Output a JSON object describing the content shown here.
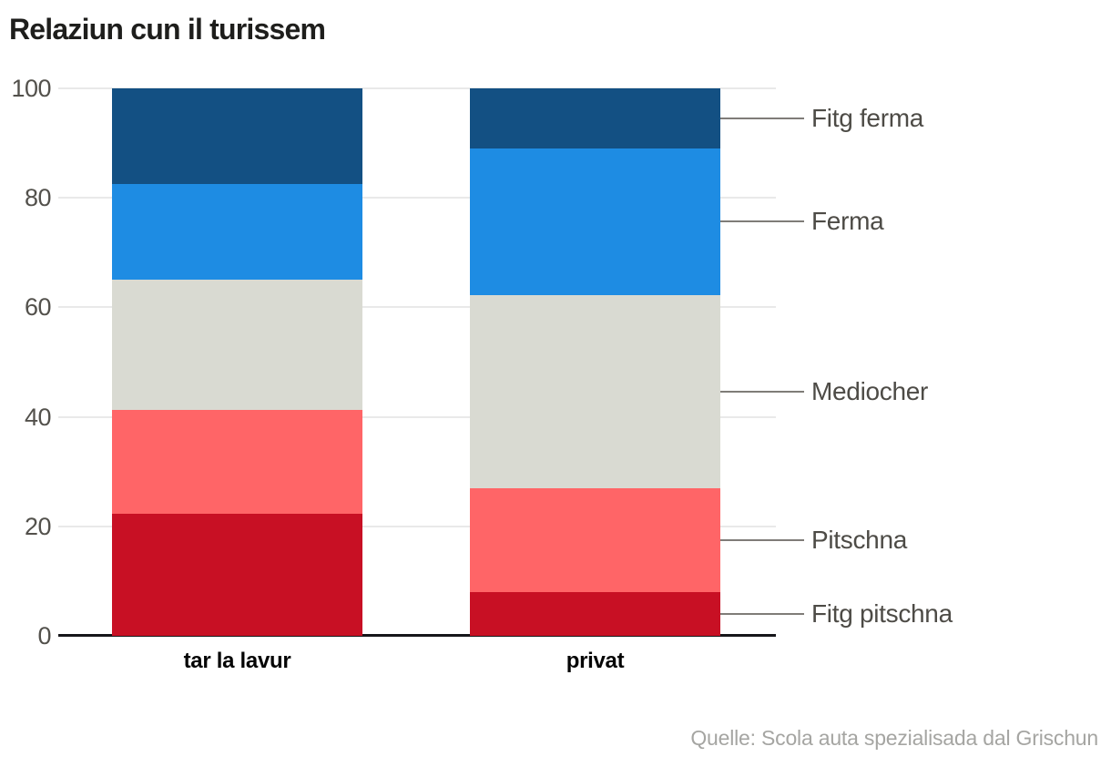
{
  "title": "Relaziun cun il turissem",
  "source": "Quelle: Scola auta spezialisada dal Grischun",
  "chart_data": {
    "type": "bar",
    "stacked": true,
    "title": "Relaziun cun il turissem",
    "source": "Quelle: Scola auta spezialisada dal Grischun",
    "categories": [
      "tar la lavur",
      "privat"
    ],
    "series": [
      {
        "name": "Fitg pitschna",
        "color": "#c81024",
        "values": [
          22.3,
          8.0
        ]
      },
      {
        "name": "Pitschna",
        "color": "#ff6567",
        "values": [
          19.0,
          19.0
        ]
      },
      {
        "name": "Mediocher",
        "color": "#d9dad2",
        "values": [
          23.8,
          35.3
        ]
      },
      {
        "name": "Ferma",
        "color": "#1e8ce3",
        "values": [
          17.4,
          26.7
        ]
      },
      {
        "name": "Fitg ferma",
        "color": "#135083",
        "values": [
          17.5,
          11.0
        ]
      }
    ],
    "xlabel": "",
    "ylabel": "",
    "ylim": [
      0,
      100
    ],
    "yticks": [
      "0",
      "20",
      "40",
      "60",
      "80",
      "100"
    ],
    "grid": true,
    "legend_position": "right-callouts",
    "colors": {
      "grid": "#e9e9e9",
      "axis": "#16161a",
      "leader": "#7f7c78",
      "tick_text": "#53514c",
      "legend_text": "#4d4b46",
      "source_text": "#a5a5a2",
      "title_text": "#1e1e1c"
    }
  }
}
